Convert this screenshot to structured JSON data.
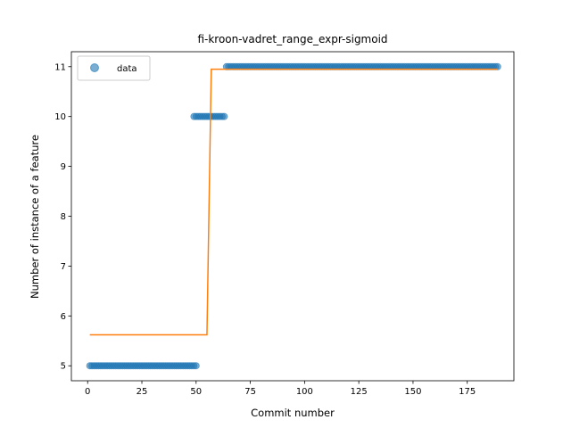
{
  "chart_data": {
    "type": "scatter",
    "title": "fi-kroon-vadret_range_expr-sigmoid",
    "xlabel": "Commit number",
    "ylabel": "Number of instance of a feature",
    "xlim": [
      -7.5,
      196.5
    ],
    "ylim": [
      4.7,
      11.3
    ],
    "xticks": [
      0,
      25,
      50,
      75,
      100,
      125,
      150,
      175
    ],
    "yticks": [
      5,
      6,
      7,
      8,
      9,
      10,
      11
    ],
    "grid": false,
    "legend": {
      "placement": "upper-left",
      "entries": [
        "data"
      ]
    },
    "colors": {
      "scatter": "#1f77b4",
      "fit": "#ff7f0e"
    },
    "series": [
      {
        "name": "data",
        "kind": "scatter",
        "segments": [
          {
            "x_start": 1,
            "x_end": 50,
            "y": 5
          },
          {
            "x_start": 49,
            "x_end": 63,
            "y": 10
          },
          {
            "x_start": 64,
            "x_end": 189,
            "y": 11
          }
        ]
      },
      {
        "kind": "line",
        "x": [
          1,
          55,
          56,
          57,
          189
        ],
        "y": [
          5.62,
          5.62,
          8.3,
          10.95,
          10.95
        ]
      }
    ]
  }
}
